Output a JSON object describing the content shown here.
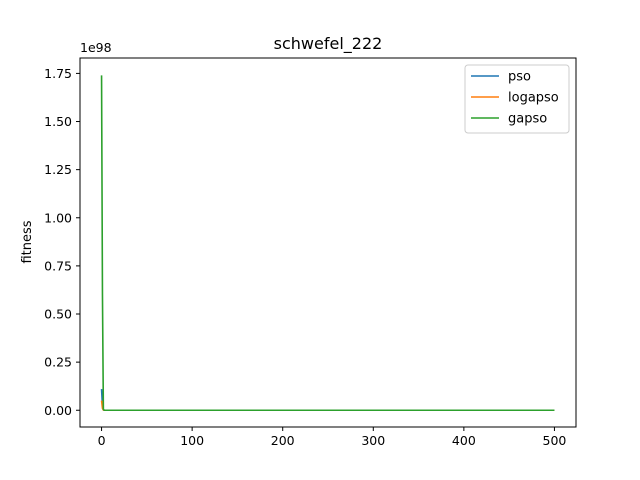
{
  "chart_data": {
    "type": "line",
    "title": "schwefel_222",
    "xlabel": "",
    "ylabel": "fitness",
    "y_multiplier_label": "1e98",
    "xlim": [
      -23.8,
      523.8
    ],
    "ylim": [
      -0.087,
      1.83
    ],
    "x_ticks": [
      0,
      100,
      200,
      300,
      400,
      500
    ],
    "x_tick_labels": [
      "0",
      "100",
      "200",
      "300",
      "400",
      "500"
    ],
    "y_ticks": [
      0.0,
      0.25,
      0.5,
      0.75,
      1.0,
      1.25,
      1.5,
      1.75
    ],
    "y_tick_labels": [
      "0.00",
      "0.25",
      "0.50",
      "0.75",
      "1.00",
      "1.25",
      "1.50",
      "1.75"
    ],
    "legend_position": "upper right",
    "grid": false,
    "series": [
      {
        "name": "pso",
        "color": "#1f77b4",
        "x": [
          0,
          1,
          2,
          3,
          5,
          10,
          20,
          50,
          100,
          200,
          300,
          400,
          500
        ],
        "y": [
          0.11,
          0.02,
          0.002,
          0.0,
          0.0,
          0.0,
          0.0,
          0.0,
          0.0,
          0.0,
          0.0,
          0.0,
          0.0
        ]
      },
      {
        "name": "logapso",
        "color": "#ff7f0e",
        "x": [
          0,
          1,
          2,
          3,
          5,
          10,
          20,
          50,
          100,
          200,
          300,
          400,
          500
        ],
        "y": [
          0.05,
          0.01,
          0.001,
          0.0,
          0.0,
          0.0,
          0.0,
          0.0,
          0.0,
          0.0,
          0.0,
          0.0,
          0.0
        ]
      },
      {
        "name": "gapso",
        "color": "#2ca02c",
        "x": [
          0,
          1,
          2,
          3,
          5,
          10,
          20,
          50,
          100,
          200,
          300,
          400,
          500
        ],
        "y": [
          1.74,
          0.6,
          0.005,
          0.0,
          0.0,
          0.0,
          0.0,
          0.0,
          0.0,
          0.0,
          0.0,
          0.0,
          0.0
        ]
      }
    ]
  }
}
